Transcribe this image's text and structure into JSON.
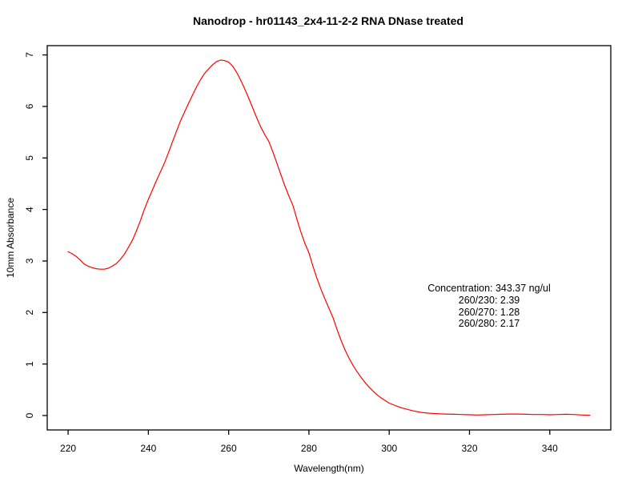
{
  "annotation": {
    "lines": [
      "Concentration: 343.37 ng/ul",
      "260/230: 2.39",
      "260/270: 1.28",
      "260/280: 2.17"
    ]
  },
  "colors": {
    "line": "#ff0000",
    "axis": "#000000",
    "background": "#ffffff",
    "text": "#000000"
  },
  "chart_data": {
    "type": "line",
    "title": "Nanodrop - hr01143_2x4-11-2-2 RNA DNase treated",
    "xlabel": "Wavelength(nm)",
    "ylabel": "10mm Absorbance",
    "xlim": [
      214.8,
      355.2
    ],
    "ylim": [
      -0.28,
      7.18
    ],
    "x_ticks": [
      220,
      240,
      260,
      280,
      300,
      320,
      340
    ],
    "y_ticks": [
      0,
      1,
      2,
      3,
      4,
      5,
      6,
      7
    ],
    "grid": false,
    "legend": "none",
    "series": [
      {
        "name": "absorbance-spectrum",
        "color": "#ff0000",
        "x": [
          220,
          221,
          222,
          223,
          224,
          225,
          226,
          227,
          228,
          229,
          230,
          231,
          232,
          233,
          234,
          235,
          236,
          237,
          238,
          239,
          240,
          241,
          242,
          243,
          244,
          245,
          246,
          247,
          248,
          249,
          250,
          251,
          252,
          253,
          254,
          255,
          256,
          257,
          258,
          259,
          260,
          261,
          262,
          263,
          264,
          265,
          266,
          267,
          268,
          269,
          270,
          271,
          272,
          273,
          274,
          275,
          276,
          277,
          278,
          279,
          280,
          281,
          282,
          283,
          284,
          285,
          286,
          287,
          288,
          289,
          290,
          291,
          292,
          293,
          294,
          295,
          296,
          297,
          298,
          299,
          300,
          301,
          302,
          303,
          304,
          305,
          306,
          308,
          310,
          312,
          314,
          316,
          318,
          320,
          322,
          324,
          326,
          328,
          330,
          332,
          334,
          336,
          338,
          340,
          342,
          344,
          346,
          348,
          350
        ],
        "y": [
          3.18,
          3.14,
          3.09,
          3.02,
          2.94,
          2.9,
          2.87,
          2.85,
          2.84,
          2.84,
          2.86,
          2.9,
          2.95,
          3.03,
          3.13,
          3.26,
          3.4,
          3.58,
          3.78,
          4.0,
          4.2,
          4.38,
          4.56,
          4.73,
          4.9,
          5.1,
          5.31,
          5.52,
          5.72,
          5.89,
          6.06,
          6.22,
          6.38,
          6.52,
          6.64,
          6.73,
          6.81,
          6.87,
          6.9,
          6.89,
          6.86,
          6.78,
          6.66,
          6.51,
          6.34,
          6.16,
          5.97,
          5.78,
          5.6,
          5.45,
          5.32,
          5.12,
          4.9,
          4.68,
          4.46,
          4.26,
          4.08,
          3.81,
          3.56,
          3.34,
          3.16,
          2.9,
          2.66,
          2.45,
          2.26,
          2.08,
          1.9,
          1.67,
          1.46,
          1.27,
          1.11,
          0.97,
          0.85,
          0.74,
          0.64,
          0.55,
          0.47,
          0.4,
          0.34,
          0.29,
          0.24,
          0.21,
          0.18,
          0.15,
          0.13,
          0.11,
          0.09,
          0.06,
          0.045,
          0.035,
          0.03,
          0.025,
          0.02,
          0.015,
          0.01,
          0.015,
          0.02,
          0.025,
          0.03,
          0.03,
          0.025,
          0.02,
          0.02,
          0.015,
          0.02,
          0.025,
          0.02,
          0.01,
          0.005
        ]
      }
    ]
  }
}
